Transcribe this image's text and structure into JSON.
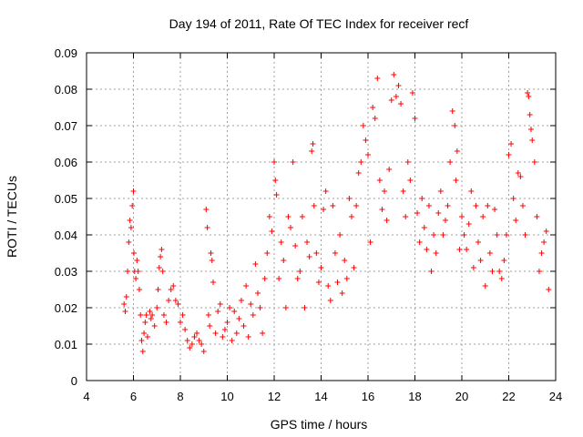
{
  "chart_data": {
    "type": "scatter",
    "title": "Day 194 of 2011, Rate Of TEC Index for receiver recf",
    "xlabel": "GPS time / hours",
    "ylabel": "ROTI / TECUs",
    "xlim": [
      4,
      24
    ],
    "ylim": [
      0,
      0.09
    ],
    "x_ticks": [
      "4",
      "6",
      "8",
      "10",
      "12",
      "14",
      "16",
      "18",
      "20",
      "22",
      "24"
    ],
    "y_ticks": [
      "0",
      "0.01",
      "0.02",
      "0.03",
      "0.04",
      "0.05",
      "0.06",
      "0.07",
      "0.08",
      "0.09"
    ],
    "grid": true,
    "marker": "plus",
    "color": "#ff0000",
    "series": [
      {
        "points": [
          [
            5.6,
            0.021
          ],
          [
            5.65,
            0.019
          ],
          [
            5.7,
            0.023
          ],
          [
            5.75,
            0.03
          ],
          [
            5.8,
            0.038
          ],
          [
            5.85,
            0.044
          ],
          [
            5.9,
            0.042
          ],
          [
            5.95,
            0.048
          ],
          [
            6.0,
            0.052
          ],
          [
            6.02,
            0.035
          ],
          [
            6.05,
            0.03
          ],
          [
            6.1,
            0.028
          ],
          [
            6.15,
            0.033
          ],
          [
            6.2,
            0.03
          ],
          [
            6.25,
            0.025
          ],
          [
            6.3,
            0.018
          ],
          [
            6.35,
            0.011
          ],
          [
            6.4,
            0.008
          ],
          [
            6.45,
            0.013
          ],
          [
            6.5,
            0.016
          ],
          [
            6.55,
            0.018
          ],
          [
            6.6,
            0.012
          ],
          [
            6.7,
            0.019
          ],
          [
            6.75,
            0.017
          ],
          [
            6.8,
            0.018
          ],
          [
            6.9,
            0.015
          ],
          [
            7.0,
            0.02
          ],
          [
            7.05,
            0.025
          ],
          [
            7.1,
            0.031
          ],
          [
            7.15,
            0.034
          ],
          [
            7.2,
            0.036
          ],
          [
            7.25,
            0.03
          ],
          [
            7.3,
            0.018
          ],
          [
            7.4,
            0.016
          ],
          [
            7.5,
            0.022
          ],
          [
            7.6,
            0.025
          ],
          [
            7.7,
            0.026
          ],
          [
            7.8,
            0.022
          ],
          [
            7.9,
            0.021
          ],
          [
            8.0,
            0.016
          ],
          [
            8.1,
            0.018
          ],
          [
            8.2,
            0.014
          ],
          [
            8.3,
            0.011
          ],
          [
            8.4,
            0.009
          ],
          [
            8.5,
            0.01
          ],
          [
            8.6,
            0.012
          ],
          [
            8.7,
            0.013
          ],
          [
            8.8,
            0.011
          ],
          [
            8.9,
            0.01
          ],
          [
            9.0,
            0.008
          ],
          [
            9.1,
            0.047
          ],
          [
            9.15,
            0.042
          ],
          [
            9.2,
            0.018
          ],
          [
            9.25,
            0.015
          ],
          [
            9.3,
            0.035
          ],
          [
            9.35,
            0.033
          ],
          [
            9.4,
            0.027
          ],
          [
            9.5,
            0.013
          ],
          [
            9.6,
            0.019
          ],
          [
            9.7,
            0.021
          ],
          [
            9.8,
            0.012
          ],
          [
            9.9,
            0.014
          ],
          [
            10.0,
            0.016
          ],
          [
            10.1,
            0.02
          ],
          [
            10.2,
            0.011
          ],
          [
            10.3,
            0.019
          ],
          [
            10.4,
            0.013
          ],
          [
            10.5,
            0.017
          ],
          [
            10.6,
            0.022
          ],
          [
            10.7,
            0.015
          ],
          [
            10.8,
            0.026
          ],
          [
            10.9,
            0.012
          ],
          [
            11.0,
            0.021
          ],
          [
            11.1,
            0.018
          ],
          [
            11.2,
            0.032
          ],
          [
            11.3,
            0.024
          ],
          [
            11.4,
            0.02
          ],
          [
            11.5,
            0.013
          ],
          [
            11.6,
            0.028
          ],
          [
            11.7,
            0.035
          ],
          [
            11.8,
            0.045
          ],
          [
            11.9,
            0.041
          ],
          [
            12.0,
            0.06
          ],
          [
            12.05,
            0.055
          ],
          [
            12.1,
            0.051
          ],
          [
            12.2,
            0.028
          ],
          [
            12.3,
            0.038
          ],
          [
            12.4,
            0.033
          ],
          [
            12.5,
            0.02
          ],
          [
            12.6,
            0.045
          ],
          [
            12.7,
            0.042
          ],
          [
            12.8,
            0.06
          ],
          [
            12.9,
            0.037
          ],
          [
            13.0,
            0.028
          ],
          [
            13.1,
            0.03
          ],
          [
            13.2,
            0.045
          ],
          [
            13.3,
            0.02
          ],
          [
            13.4,
            0.038
          ],
          [
            13.5,
            0.034
          ],
          [
            13.6,
            0.063
          ],
          [
            13.65,
            0.065
          ],
          [
            13.7,
            0.048
          ],
          [
            13.8,
            0.035
          ],
          [
            13.9,
            0.027
          ],
          [
            14.0,
            0.031
          ],
          [
            14.1,
            0.047
          ],
          [
            14.2,
            0.052
          ],
          [
            14.3,
            0.026
          ],
          [
            14.4,
            0.022
          ],
          [
            14.5,
            0.048
          ],
          [
            14.6,
            0.035
          ],
          [
            14.7,
            0.027
          ],
          [
            14.8,
            0.04
          ],
          [
            14.9,
            0.024
          ],
          [
            15.0,
            0.033
          ],
          [
            15.1,
            0.028
          ],
          [
            15.2,
            0.05
          ],
          [
            15.3,
            0.045
          ],
          [
            15.4,
            0.031
          ],
          [
            15.5,
            0.048
          ],
          [
            15.6,
            0.057
          ],
          [
            15.7,
            0.06
          ],
          [
            15.8,
            0.07
          ],
          [
            15.9,
            0.066
          ],
          [
            16.0,
            0.062
          ],
          [
            16.1,
            0.038
          ],
          [
            16.2,
            0.075
          ],
          [
            16.3,
            0.072
          ],
          [
            16.4,
            0.083
          ],
          [
            16.5,
            0.055
          ],
          [
            16.6,
            0.047
          ],
          [
            16.7,
            0.052
          ],
          [
            16.8,
            0.044
          ],
          [
            16.9,
            0.058
          ],
          [
            17.0,
            0.077
          ],
          [
            17.1,
            0.084
          ],
          [
            17.2,
            0.078
          ],
          [
            17.3,
            0.081
          ],
          [
            17.4,
            0.076
          ],
          [
            17.5,
            0.052
          ],
          [
            17.6,
            0.045
          ],
          [
            17.7,
            0.06
          ],
          [
            17.8,
            0.055
          ],
          [
            17.9,
            0.079
          ],
          [
            18.0,
            0.072
          ],
          [
            18.1,
            0.046
          ],
          [
            18.2,
            0.038
          ],
          [
            18.3,
            0.05
          ],
          [
            18.4,
            0.042
          ],
          [
            18.5,
            0.036
          ],
          [
            18.6,
            0.048
          ],
          [
            18.7,
            0.03
          ],
          [
            18.8,
            0.04
          ],
          [
            18.9,
            0.035
          ],
          [
            19.0,
            0.046
          ],
          [
            19.1,
            0.052
          ],
          [
            19.2,
            0.04
          ],
          [
            19.3,
            0.044
          ],
          [
            19.4,
            0.048
          ],
          [
            19.5,
            0.06
          ],
          [
            19.6,
            0.074
          ],
          [
            19.7,
            0.07
          ],
          [
            19.75,
            0.055
          ],
          [
            19.8,
            0.063
          ],
          [
            19.9,
            0.036
          ],
          [
            20.0,
            0.045
          ],
          [
            20.1,
            0.04
          ],
          [
            20.2,
            0.036
          ],
          [
            20.3,
            0.043
          ],
          [
            20.4,
            0.052
          ],
          [
            20.5,
            0.031
          ],
          [
            20.6,
            0.048
          ],
          [
            20.7,
            0.038
          ],
          [
            20.8,
            0.033
          ],
          [
            20.9,
            0.045
          ],
          [
            21.0,
            0.026
          ],
          [
            21.1,
            0.048
          ],
          [
            21.2,
            0.035
          ],
          [
            21.3,
            0.03
          ],
          [
            21.4,
            0.047
          ],
          [
            21.5,
            0.04
          ],
          [
            21.6,
            0.03
          ],
          [
            21.7,
            0.028
          ],
          [
            21.8,
            0.033
          ],
          [
            21.9,
            0.04
          ],
          [
            22.0,
            0.062
          ],
          [
            22.1,
            0.065
          ],
          [
            22.2,
            0.05
          ],
          [
            22.3,
            0.044
          ],
          [
            22.4,
            0.057
          ],
          [
            22.5,
            0.056
          ],
          [
            22.6,
            0.048
          ],
          [
            22.7,
            0.04
          ],
          [
            22.8,
            0.079
          ],
          [
            22.85,
            0.078
          ],
          [
            22.9,
            0.073
          ],
          [
            22.95,
            0.069
          ],
          [
            23.0,
            0.066
          ],
          [
            23.1,
            0.06
          ],
          [
            23.2,
            0.045
          ],
          [
            23.3,
            0.03
          ],
          [
            23.4,
            0.035
          ],
          [
            23.5,
            0.038
          ],
          [
            23.6,
            0.041
          ],
          [
            23.7,
            0.025
          ]
        ]
      }
    ]
  }
}
